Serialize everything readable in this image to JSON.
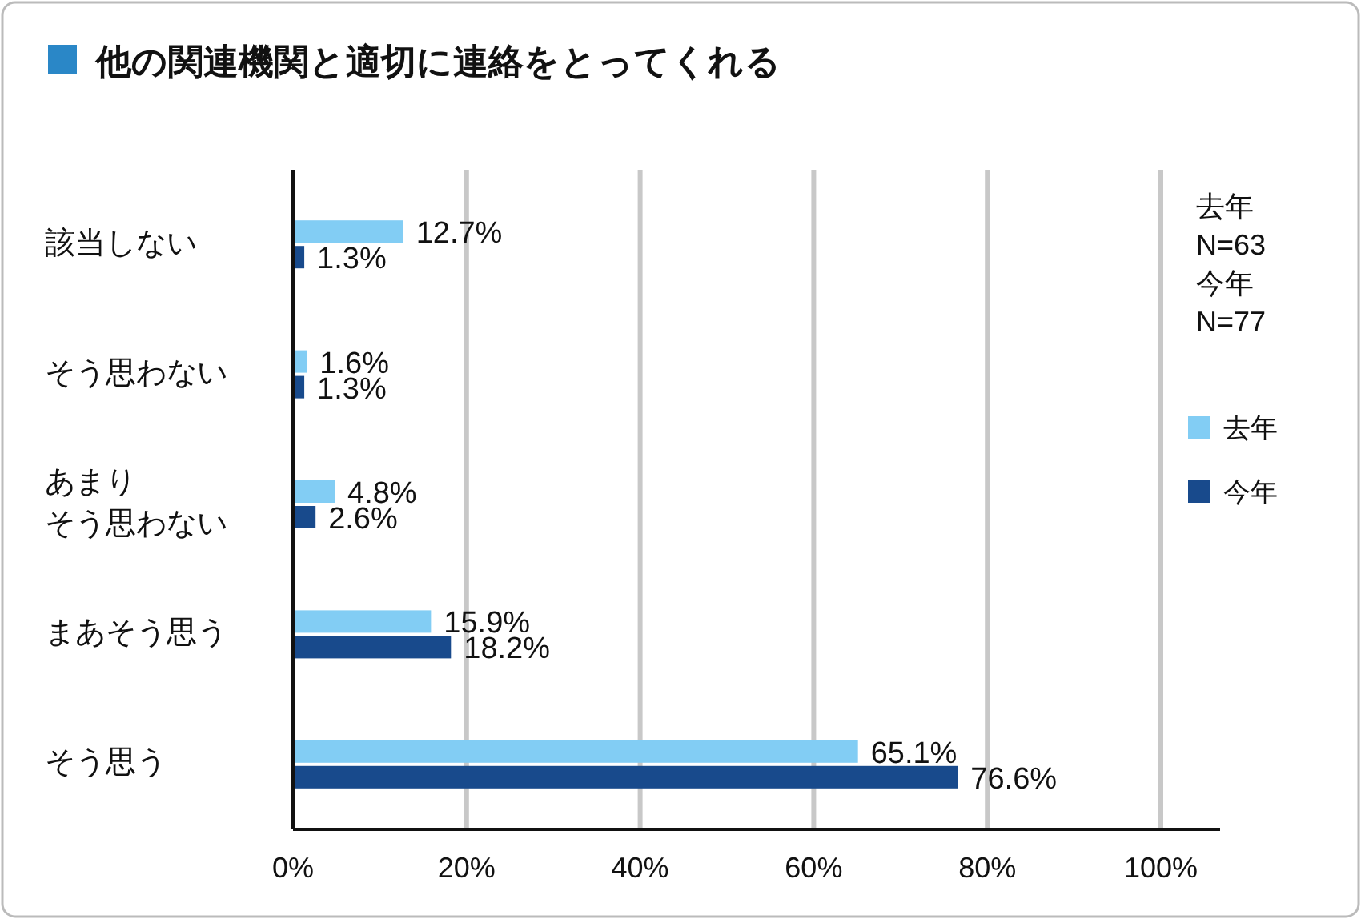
{
  "chart_data": {
    "type": "bar",
    "orientation": "horizontal",
    "title": "他の関連機関と適切に連絡をとってくれる",
    "categories": [
      "該当しない",
      "そう思わない",
      "あまりそう思わない",
      "まあそう思う",
      "そう思う"
    ],
    "series": [
      {
        "name": "去年",
        "color": "#82cdf4",
        "values": [
          12.7,
          1.6,
          4.8,
          15.9,
          65.1
        ],
        "value_labels": [
          "12.7%",
          "1.6%",
          "4.8%",
          "15.9%",
          "65.1%"
        ]
      },
      {
        "name": "今年",
        "color": "#184a8c",
        "values": [
          1.3,
          1.3,
          2.6,
          18.2,
          76.6
        ],
        "value_labels": [
          "1.3%",
          "1.3%",
          "2.6%",
          "18.2%",
          "76.6%"
        ]
      }
    ],
    "xlim": [
      0,
      100
    ],
    "xticks": [
      {
        "value": 0,
        "label": "0%"
      },
      {
        "value": 20,
        "label": "20%"
      },
      {
        "value": 40,
        "label": "40%"
      },
      {
        "value": 60,
        "label": "60%"
      },
      {
        "value": 80,
        "label": "80%"
      },
      {
        "value": 100,
        "label": "100%"
      }
    ],
    "grid": "x",
    "legend": "right",
    "annotations": [
      "去年\nN=63\n今年\nN=77"
    ]
  }
}
